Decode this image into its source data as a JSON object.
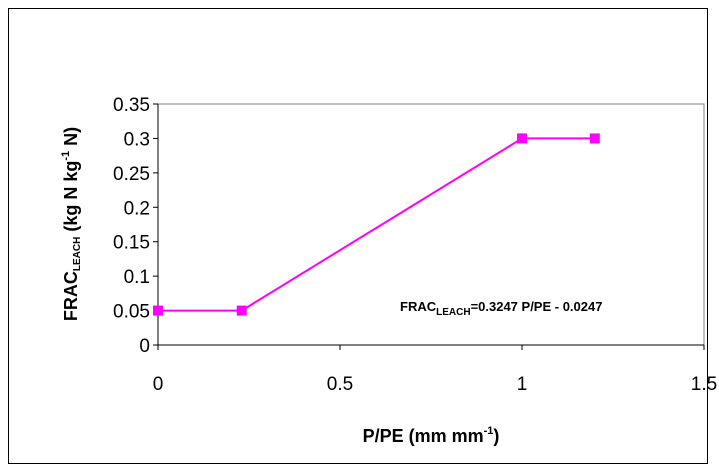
{
  "chart_data": {
    "type": "line",
    "x": [
      0,
      0.23,
      1.0,
      1.2
    ],
    "y": [
      0.05,
      0.05,
      0.3,
      0.3
    ],
    "xlim": [
      0,
      1.5
    ],
    "ylim": [
      0,
      0.35
    ],
    "xticks": [
      "0",
      "0.5",
      "1",
      "1.5"
    ],
    "yticks": [
      "0",
      "0.05",
      "0.1",
      "0.15",
      "0.2",
      "0.25",
      "0.3",
      "0.35"
    ],
    "xlabel": {
      "main": "P/PE (mm mm",
      "sup": "-1",
      "tail": ")"
    },
    "ylabel": {
      "main": "FRAC",
      "sub": "LEACH",
      "mid": " (kg N kg",
      "sup": "-1",
      "tail": " N)"
    },
    "annotation": {
      "main": "FRAC",
      "sub": "LEACH",
      "tail": "=0.3247 P/PE - 0.0247"
    },
    "series_color": "#ff00ff",
    "grid": false,
    "legend": false
  }
}
